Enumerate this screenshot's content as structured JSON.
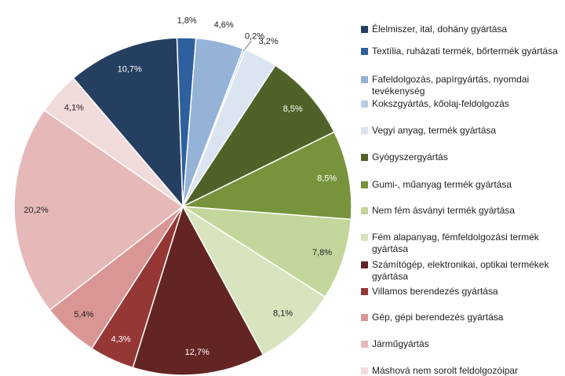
{
  "chart_data": {
    "type": "pie",
    "categories": [
      "Élelmiszer, ital, dohány gyártása",
      "Textília, ruházati termék, bőrtermék gyártása",
      "Fafeldolgozás, papírgyártás, nyomdai tevékenység",
      "Kokszgyártás, kőolaj-feldolgozás",
      "Vegyi anyag, termék gyártása",
      "Gyógyszergyártás",
      "Gumi-, műanyag termék  gyártása",
      "Nem fém ásványi termék gyártása",
      "Fém alapanyag, fémfeldolgozási termék gyártása",
      "Számítógép, elektronikai, optikai termékek gyártása",
      "Villamos berendezés gyártása",
      "Gép, gépi  berendezés gyártása",
      "Járműgyártás",
      "Máshová nem sorolt feldolgozóipar"
    ],
    "values": [
      10.7,
      1.8,
      4.6,
      0.2,
      3.2,
      8.5,
      8.5,
      7.8,
      8.1,
      12.7,
      4.3,
      5.4,
      20.2,
      4.1
    ],
    "value_labels": [
      "10,7%",
      "1,8%",
      "4,6%",
      "0,2%",
      "3,2%",
      "8,5%",
      "8,5%",
      "7,8%",
      "8,1%",
      "12,7%",
      "4,3%",
      "5,4%",
      "20,2%",
      "4,1%"
    ],
    "colors": [
      "#243f60",
      "#2e5f9e",
      "#95b3d7",
      "#b8cce4",
      "#dbe5f1",
      "#4f6228",
      "#77933c",
      "#c3d69b",
      "#d7e4bd",
      "#632523",
      "#953735",
      "#d99694",
      "#e6b9b8",
      "#f2dcdb"
    ],
    "legend": "right"
  }
}
